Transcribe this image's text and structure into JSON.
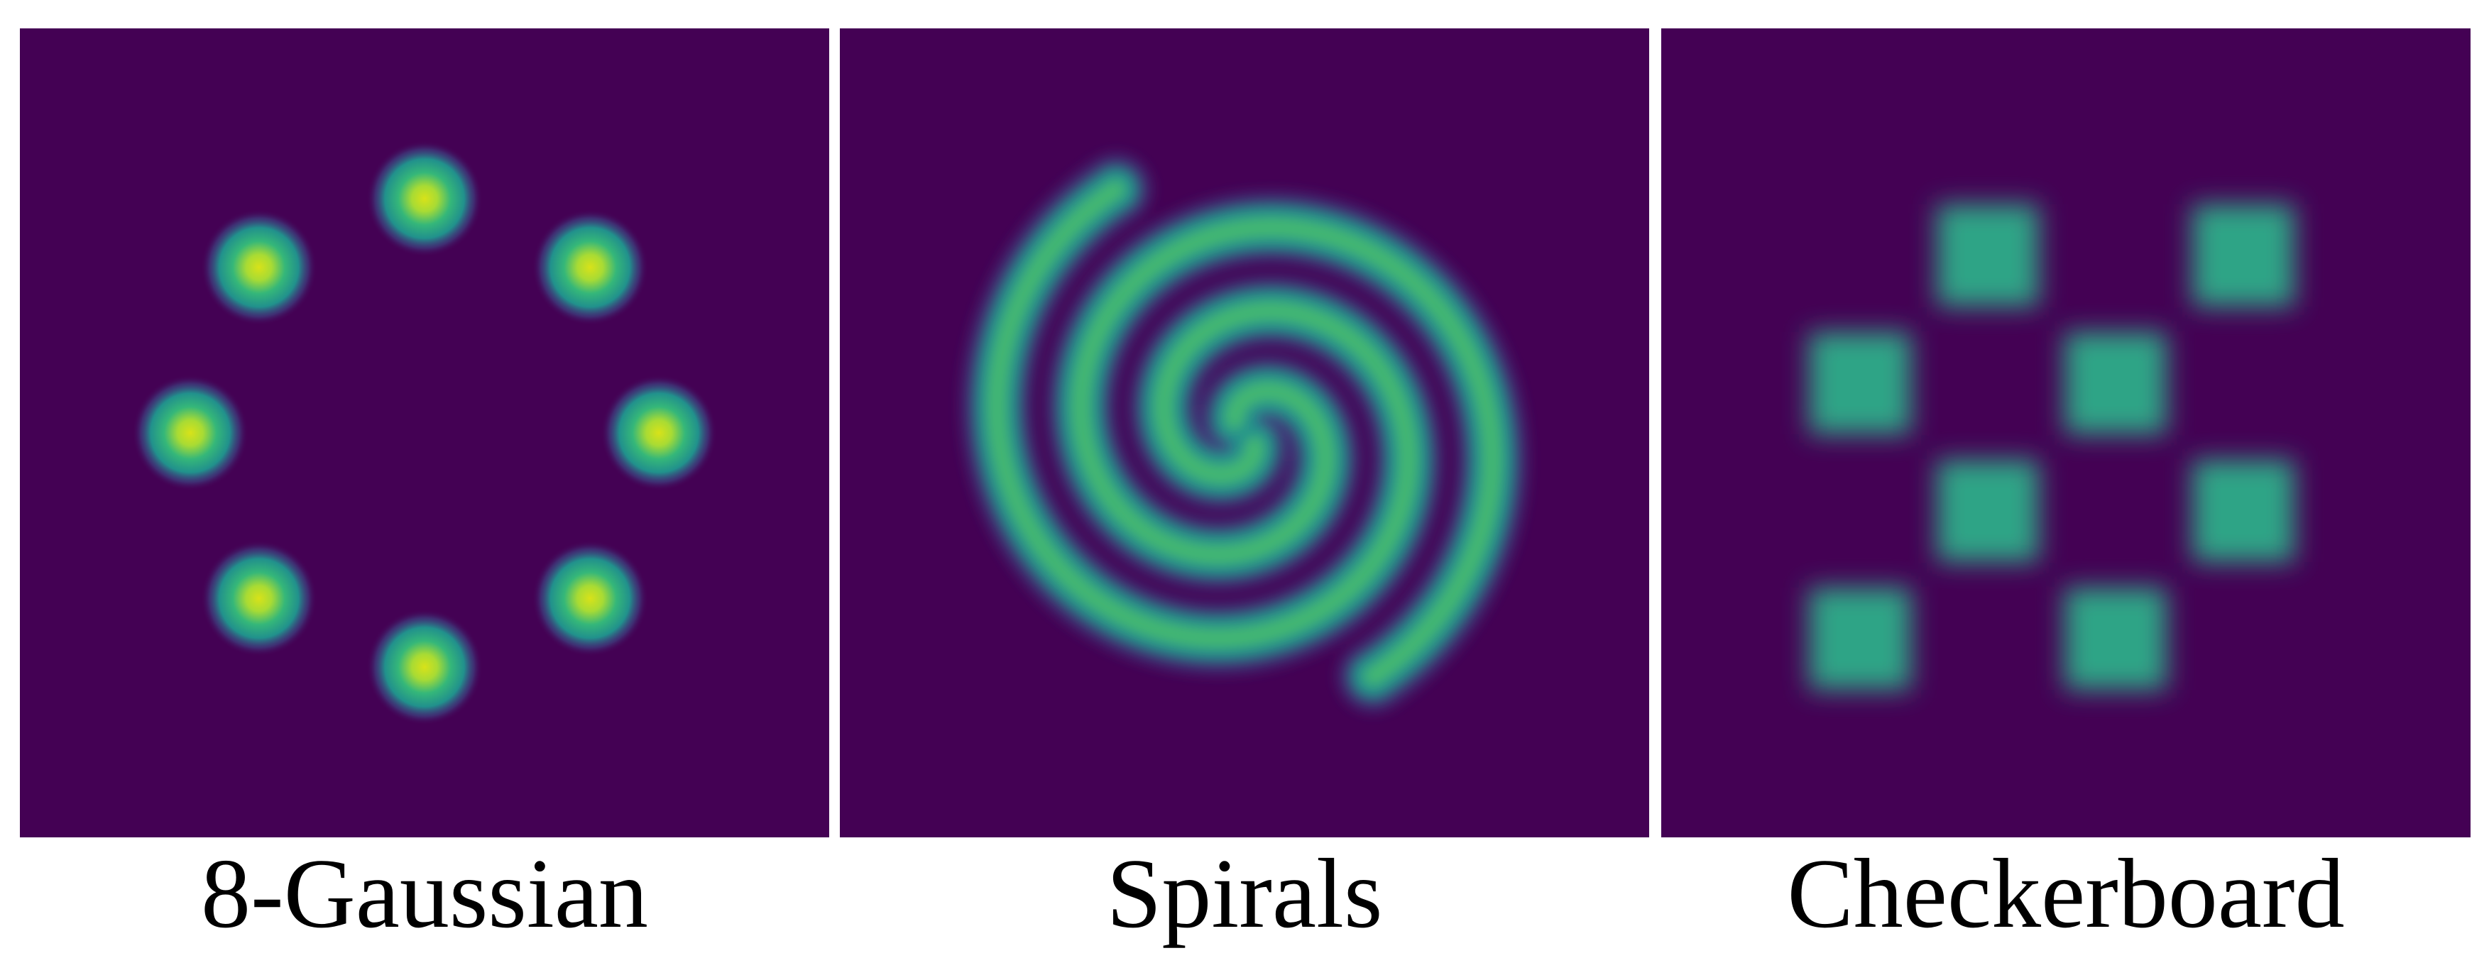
{
  "figure": {
    "colors": {
      "background": "#440154",
      "low": "#3b528b",
      "mid": "#21918c",
      "high": "#5ec962",
      "peak": "#d8e219"
    },
    "panels": [
      {
        "key": "gaussian",
        "title": "8-Gaussian"
      },
      {
        "key": "spirals",
        "title": "Spirals"
      },
      {
        "key": "checkerboard",
        "title": "Checkerboard"
      }
    ]
  }
}
